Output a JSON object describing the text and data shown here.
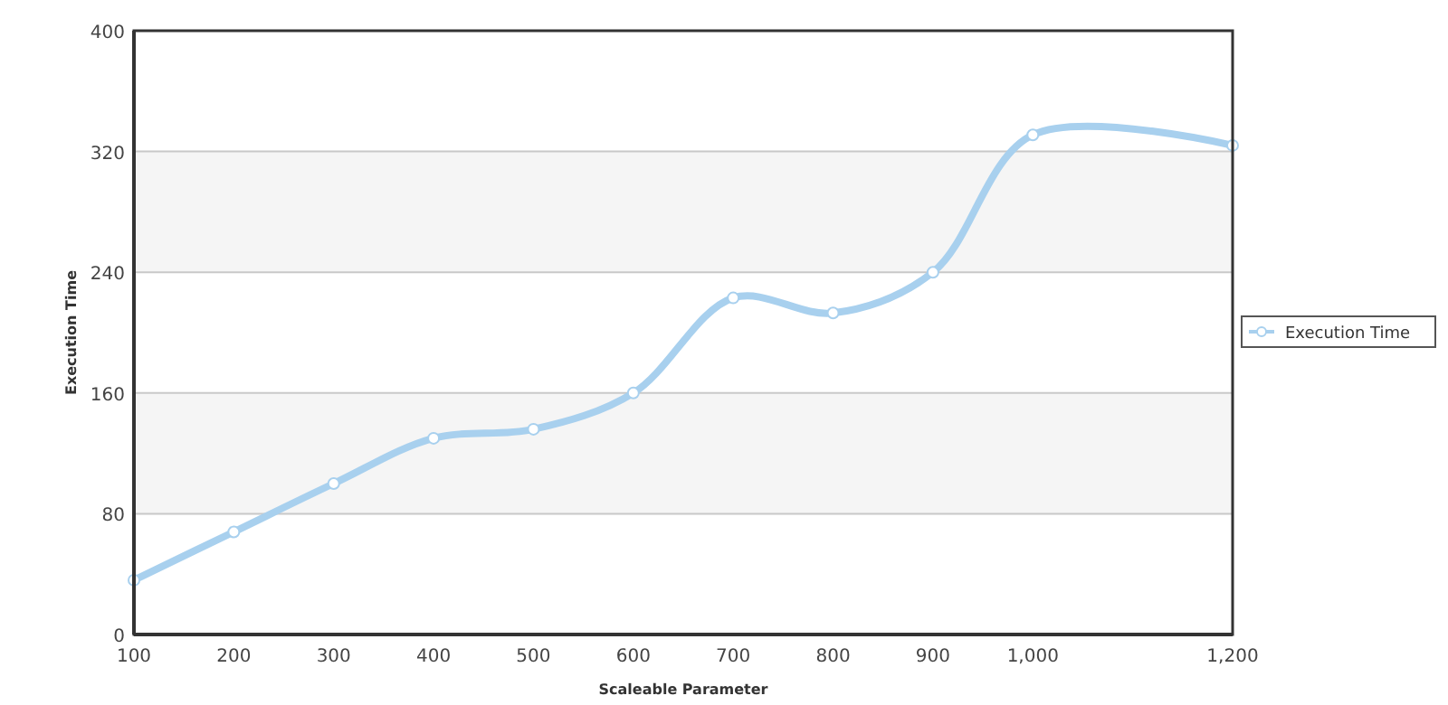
{
  "chart_data": {
    "type": "line",
    "xlabel": "Scaleable Parameter",
    "ylabel": "Execution Time",
    "x": [
      100,
      200,
      300,
      400,
      500,
      600,
      700,
      800,
      900,
      1000,
      1200
    ],
    "series": [
      {
        "name": "Execution Time",
        "color": "#a8d0ee",
        "values": [
          36,
          68,
          100,
          130,
          136,
          160,
          223,
          213,
          240,
          331,
          324
        ]
      }
    ],
    "xlim": [
      100,
      1200
    ],
    "xticks": [
      100,
      200,
      300,
      400,
      500,
      600,
      700,
      800,
      900,
      {
        "value": 1000,
        "label": "1,000"
      },
      {
        "value": 1200,
        "label": "1,200"
      }
    ],
    "ylim": [
      0,
      400
    ],
    "yticks": [
      0,
      80,
      160,
      240,
      320,
      400
    ],
    "grid": "y",
    "legend": "right",
    "marker": "circle",
    "line_style": "solid"
  }
}
